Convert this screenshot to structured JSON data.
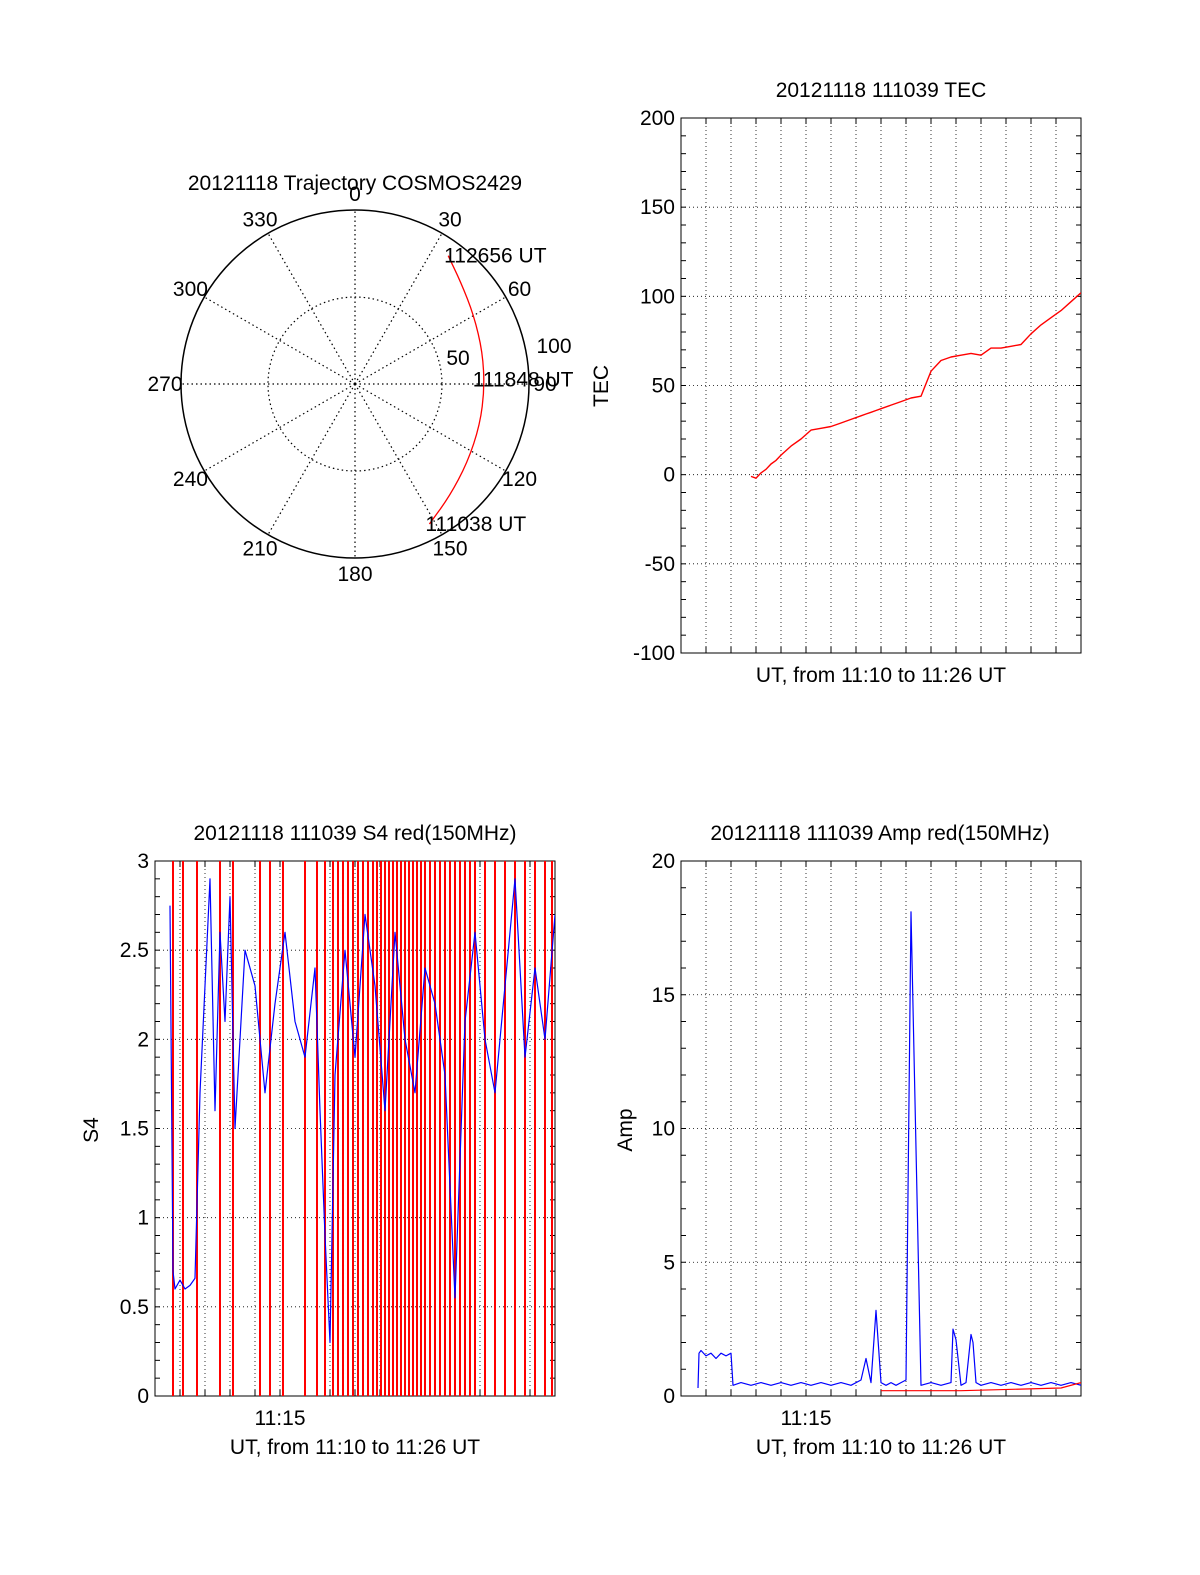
{
  "colors": {
    "primary_trace": "#ff0000",
    "secondary_trace": "#0000ff",
    "axes": "#000000",
    "grid": "#000000"
  },
  "chart_data": [
    {
      "type": "polar-trajectory",
      "title": "20121118 Trajectory COSMOS2429",
      "angle_labels": [
        "0",
        "30",
        "60",
        "90",
        "120",
        "150",
        "180",
        "210",
        "240",
        "270",
        "300",
        "330"
      ],
      "radial_labels": [
        "50",
        "100"
      ],
      "radial_max": 100,
      "grid": true,
      "track": {
        "color": "#ff0000",
        "points": [
          {
            "az": 152,
            "el": 8
          },
          {
            "az": 140,
            "el": 14
          },
          {
            "az": 125,
            "el": 19
          },
          {
            "az": 108,
            "el": 22
          },
          {
            "az": 92,
            "el": 23
          },
          {
            "az": 76,
            "el": 22
          },
          {
            "az": 60,
            "el": 19
          },
          {
            "az": 46,
            "el": 14
          },
          {
            "az": 36,
            "el": 8
          }
        ]
      },
      "annotations": [
        {
          "text": "112656 UT",
          "az": 36,
          "el": 8
        },
        {
          "text": "111848 UT",
          "az": 88,
          "el": 27
        },
        {
          "text": "111038 UT",
          "az": 152,
          "el": 8
        }
      ]
    },
    {
      "type": "line",
      "title": "20121118 111039 TEC",
      "xlabel": "UT, from 11:10 to 11:26 UT",
      "ylabel": "TEC",
      "xlim": [
        11.1,
        11.5
      ],
      "ylim": [
        -100,
        200
      ],
      "yticks": [
        -100,
        -50,
        0,
        50,
        100,
        150,
        200
      ],
      "grid": true,
      "series": [
        {
          "color": "#ff0000",
          "x": [
            11.17,
            11.175,
            11.18,
            11.185,
            11.19,
            11.195,
            11.2,
            11.21,
            11.22,
            11.23,
            11.24,
            11.25,
            11.26,
            11.27,
            11.28,
            11.285,
            11.29,
            11.295,
            11.3,
            11.31,
            11.32,
            11.33,
            11.34,
            11.35,
            11.36,
            11.37,
            11.38,
            11.39,
            11.4,
            11.41,
            11.42,
            11.43,
            11.44,
            11.45,
            11.46,
            11.47,
            11.48,
            11.49,
            11.5
          ],
          "y": [
            -1,
            -2,
            1,
            3,
            6,
            8,
            11,
            16,
            20,
            25,
            26,
            27,
            29,
            31,
            33,
            34,
            35,
            36,
            37,
            39,
            41,
            43,
            44,
            58,
            64,
            66,
            67,
            68,
            67,
            71,
            71,
            72,
            73,
            79,
            84,
            88,
            92,
            97,
            102
          ]
        }
      ]
    },
    {
      "type": "line",
      "title": "20121118 111039 S4 red(150MHz)",
      "xlabel": "UT, from 11:10 to 11:26 UT",
      "ylabel": "S4",
      "xtick_labels": [
        "11:15"
      ],
      "xlim": [
        11.1,
        11.5
      ],
      "ylim": [
        0,
        3
      ],
      "yticks": [
        0,
        0.5,
        1,
        1.5,
        2,
        2.5,
        3
      ],
      "yticks_label": [
        "0",
        "0.5",
        "1",
        "1.5",
        "2",
        "2.5",
        "3"
      ],
      "grid": true,
      "series": [
        {
          "color": "#0000ff",
          "x": [
            11.115,
            11.118,
            11.12,
            11.125,
            11.13,
            11.135,
            11.14,
            11.145,
            11.15,
            11.155,
            11.16,
            11.165,
            11.17,
            11.175,
            11.18,
            11.19,
            11.2,
            11.21,
            11.22,
            11.23,
            11.24,
            11.25,
            11.26,
            11.265,
            11.27,
            11.275,
            11.28,
            11.29,
            11.3,
            11.31,
            11.32,
            11.33,
            11.34,
            11.35,
            11.36,
            11.37,
            11.38,
            11.39,
            11.4,
            11.41,
            11.42,
            11.43,
            11.44,
            11.45,
            11.46,
            11.47,
            11.48,
            11.49,
            11.5
          ],
          "y": [
            2.75,
            0.7,
            0.6,
            0.65,
            0.6,
            0.62,
            0.66,
            1.7,
            2.3,
            2.9,
            1.6,
            2.6,
            2.1,
            2.8,
            1.5,
            2.5,
            2.3,
            1.7,
            2.2,
            2.6,
            2.1,
            1.9,
            2.4,
            1.6,
            0.9,
            0.3,
            1.8,
            2.5,
            1.9,
            2.7,
            2.3,
            1.6,
            2.6,
            2.0,
            1.7,
            2.4,
            2.2,
            1.8,
            0.55,
            2.1,
            2.6,
            2.0,
            1.7,
            2.3,
            2.9,
            1.9,
            2.4,
            2.0,
            2.7
          ]
        },
        {
          "color": "#ff0000",
          "style": "spikes",
          "x": [
            11.118,
            11.128,
            11.142,
            11.165,
            11.178,
            11.205,
            11.215,
            11.228,
            11.25,
            11.262,
            11.27,
            11.278,
            11.283,
            11.288,
            11.293,
            11.298,
            11.303,
            11.308,
            11.313,
            11.318,
            11.322,
            11.326,
            11.33,
            11.334,
            11.338,
            11.342,
            11.346,
            11.35,
            11.354,
            11.358,
            11.362,
            11.366,
            11.37,
            11.375,
            11.38,
            11.385,
            11.39,
            11.395,
            11.4,
            11.405,
            11.41,
            11.415,
            11.42,
            11.43,
            11.44,
            11.45,
            11.46,
            11.47,
            11.48,
            11.49,
            11.497
          ]
        }
      ]
    },
    {
      "type": "line",
      "title": "20121118 111039 Amp red(150MHz)",
      "xlabel": "UT, from 11:10 to 11:26 UT",
      "ylabel": "Amp",
      "xtick_labels": [
        "11:15"
      ],
      "xlim": [
        11.1,
        11.5
      ],
      "ylim": [
        0,
        20
      ],
      "yticks": [
        0,
        5,
        10,
        15,
        20
      ],
      "grid": true,
      "series": [
        {
          "color": "#0000ff",
          "x": [
            11.117,
            11.118,
            11.12,
            11.125,
            11.13,
            11.135,
            11.14,
            11.145,
            11.15,
            11.152,
            11.16,
            11.17,
            11.18,
            11.19,
            11.2,
            11.21,
            11.22,
            11.23,
            11.24,
            11.25,
            11.26,
            11.27,
            11.28,
            11.285,
            11.29,
            11.295,
            11.3,
            11.305,
            11.31,
            11.315,
            11.32,
            11.325,
            11.33,
            11.34,
            11.35,
            11.36,
            11.37,
            11.372,
            11.375,
            11.38,
            11.385,
            11.39,
            11.392,
            11.395,
            11.4,
            11.41,
            11.42,
            11.43,
            11.44,
            11.45,
            11.46,
            11.47,
            11.48,
            11.49,
            11.5
          ],
          "y": [
            0.3,
            1.6,
            1.7,
            1.5,
            1.6,
            1.4,
            1.6,
            1.5,
            1.6,
            0.4,
            0.5,
            0.4,
            0.5,
            0.4,
            0.5,
            0.4,
            0.5,
            0.4,
            0.5,
            0.4,
            0.5,
            0.4,
            0.6,
            1.4,
            0.5,
            3.2,
            0.5,
            0.4,
            0.5,
            0.4,
            0.5,
            0.6,
            18.1,
            0.4,
            0.5,
            0.4,
            0.5,
            2.5,
            2.1,
            0.4,
            0.5,
            2.3,
            2.0,
            0.5,
            0.4,
            0.5,
            0.4,
            0.5,
            0.4,
            0.5,
            0.4,
            0.5,
            0.4,
            0.5,
            0.4
          ]
        },
        {
          "color": "#ff0000",
          "x": [
            11.3,
            11.38,
            11.48,
            11.5
          ],
          "y": [
            0.2,
            0.2,
            0.3,
            0.5
          ]
        }
      ]
    }
  ]
}
